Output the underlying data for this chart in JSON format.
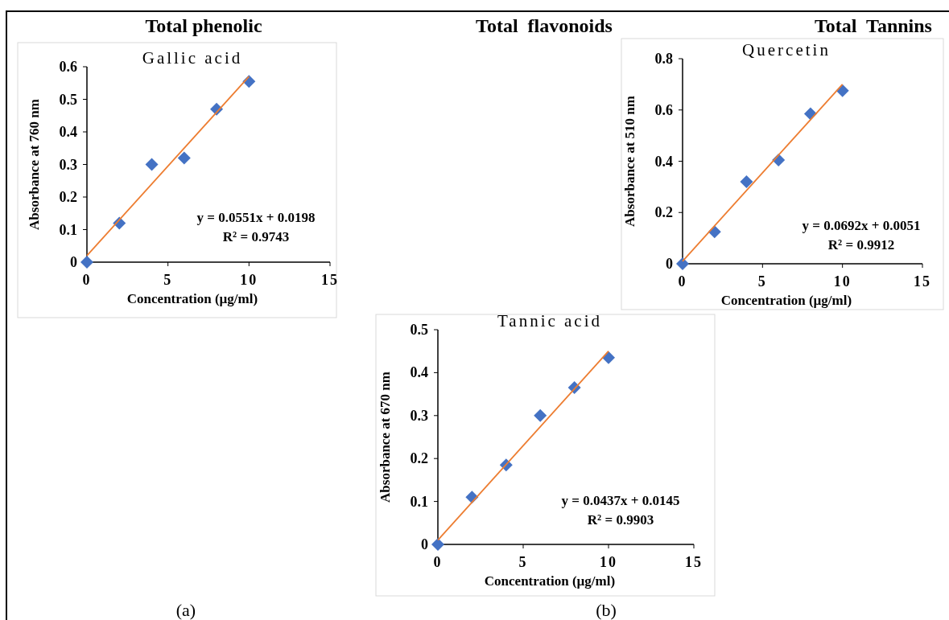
{
  "chart_data": [
    {
      "type": "scatter",
      "title": "Gallic acid",
      "xlabel": "Concentration (µg/ml)",
      "ylabel": "Absorbance  at 760 nm",
      "grid": false,
      "xlim": [
        0,
        15
      ],
      "xticks": [
        0,
        5,
        10,
        15
      ],
      "ylim": [
        0,
        0.6
      ],
      "yticks": [
        0,
        0.1,
        0.2,
        0.3,
        0.4,
        0.5,
        0.6
      ],
      "series": [
        {
          "color": "#4472c4",
          "marker": "diamond",
          "x": [
            0,
            2,
            4,
            6,
            8,
            10
          ],
          "values": [
            0,
            0.12,
            0.3,
            0.32,
            0.47,
            0.555
          ]
        },
        {
          "type": "line",
          "color": "#ed7d31",
          "x": [
            0,
            10
          ],
          "values": [
            0.02,
            0.57
          ]
        }
      ],
      "annotations": [
        "Total phenolic",
        "(a)",
        "y = 0.0551x + 0.0198",
        "R² = 0.9743"
      ]
    },
    {
      "type": "scatter",
      "title": "Quercetin",
      "xlabel": "Concentration (µg/ml)",
      "ylabel": "Absorbance  at   510 nm",
      "grid": false,
      "xlim": [
        0,
        15
      ],
      "xticks": [
        0,
        5,
        10,
        15
      ],
      "ylim": [
        0,
        0.8
      ],
      "yticks": [
        0,
        0.2,
        0.4,
        0.6,
        0.8
      ],
      "series": [
        {
          "color": "#4472c4",
          "marker": "diamond",
          "x": [
            0,
            2,
            4,
            6,
            8,
            10
          ],
          "values": [
            0,
            0.125,
            0.32,
            0.405,
            0.585,
            0.675
          ]
        },
        {
          "type": "line",
          "color": "#ed7d31",
          "x": [
            0,
            10
          ],
          "values": [
            0.01,
            0.7
          ]
        }
      ],
      "annotations": [
        "Total  Tannins",
        "y = 0.0692x + 0.0051",
        "R² = 0.9912"
      ]
    },
    {
      "type": "scatter",
      "title": "Tannic acid",
      "xlabel": "Concentration (µg/ml)",
      "ylabel": "Absorbance  at  670 nm",
      "grid": false,
      "xlim": [
        0,
        15
      ],
      "xticks": [
        0,
        5,
        10,
        15
      ],
      "ylim": [
        0,
        0.5
      ],
      "yticks": [
        0,
        0.1,
        0.2,
        0.3,
        0.4,
        0.5
      ],
      "series": [
        {
          "color": "#4472c4",
          "marker": "diamond",
          "x": [
            0,
            2,
            4,
            6,
            8,
            10
          ],
          "values": [
            0,
            0.11,
            0.185,
            0.3,
            0.365,
            0.435
          ]
        },
        {
          "type": "line",
          "color": "#ed7d31",
          "x": [
            0,
            10
          ],
          "values": [
            0.01,
            0.45
          ]
        }
      ],
      "annotations": [
        "Total  flavonoids",
        "(b)",
        "y = 0.0437x + 0.0145",
        "R² = 0.9903"
      ]
    }
  ]
}
